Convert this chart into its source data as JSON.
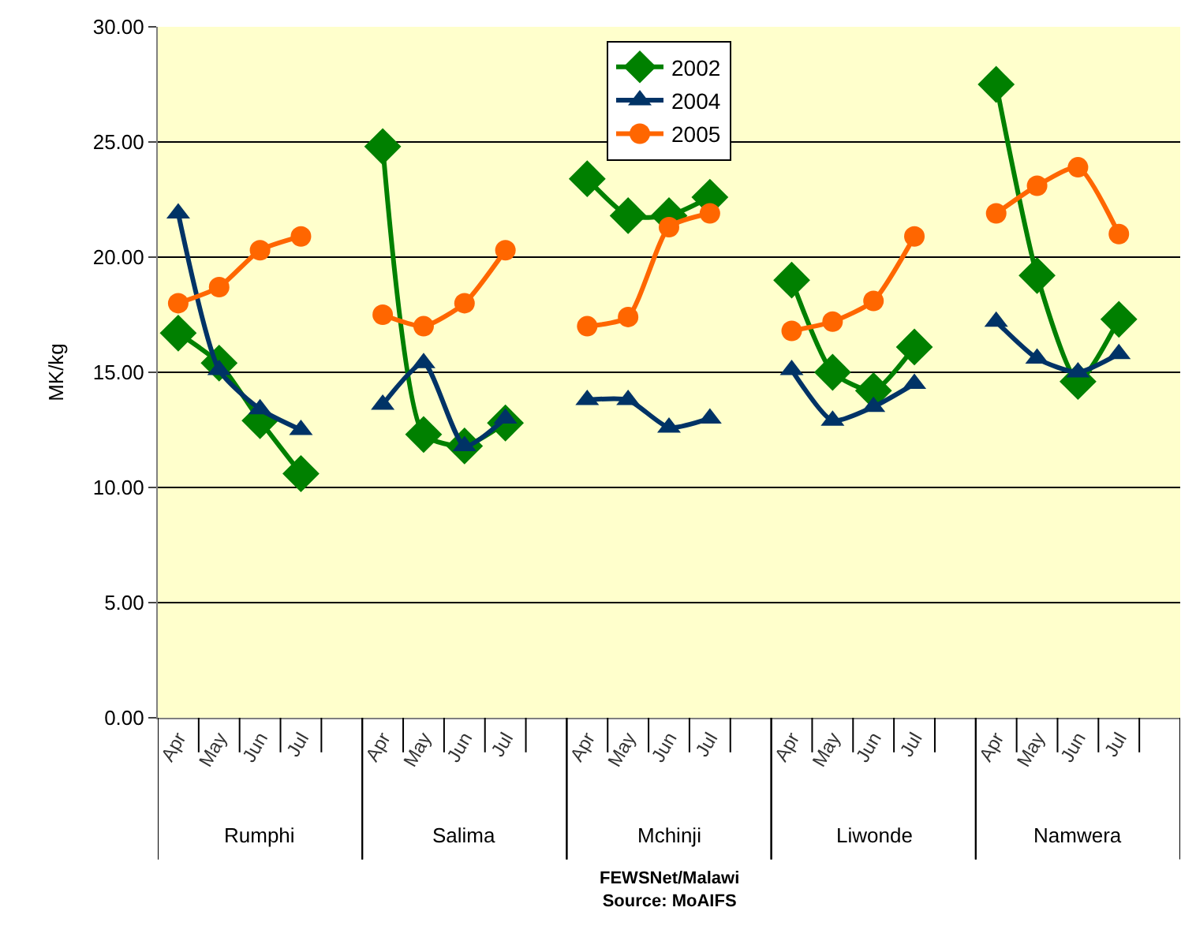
{
  "chart_data": {
    "type": "line",
    "ylabel": "MK/kg",
    "categories": [
      "Apr",
      "May",
      "Jun",
      "Jul",
      null,
      "Apr",
      "May",
      "Jun",
      "Jul",
      null,
      "Apr",
      "May",
      "Jun",
      "Jul",
      null,
      "Apr",
      "May",
      "Jun",
      "Jul",
      null,
      "Apr",
      "May",
      "Jun",
      "Jul",
      null
    ],
    "series": [
      {
        "name": "2002",
        "color": "#008000",
        "marker": "diamond",
        "values": [
          16.7,
          15.4,
          12.9,
          10.6,
          null,
          24.8,
          12.3,
          11.8,
          12.8,
          null,
          23.4,
          21.8,
          21.8,
          22.6,
          null,
          19.0,
          15.0,
          14.2,
          16.1,
          null,
          27.5,
          19.2,
          14.6,
          17.3,
          null
        ]
      },
      {
        "name": "2004",
        "color": "#003366",
        "marker": "triangle",
        "values": [
          21.9,
          15.1,
          13.4,
          12.5,
          null,
          13.6,
          15.4,
          11.8,
          13.0,
          null,
          13.8,
          13.8,
          12.6,
          13.0,
          null,
          15.1,
          12.9,
          13.5,
          14.5,
          null,
          17.2,
          15.6,
          15.0,
          15.8,
          null
        ]
      },
      {
        "name": "2005",
        "color": "#ff6600",
        "marker": "circle",
        "values": [
          18.0,
          18.7,
          20.3,
          20.9,
          null,
          17.5,
          17.0,
          18.0,
          20.3,
          null,
          17.0,
          17.4,
          21.3,
          21.9,
          null,
          16.8,
          17.2,
          18.1,
          20.9,
          null,
          21.9,
          23.1,
          23.9,
          21.0,
          null
        ]
      }
    ],
    "ylim": [
      0,
      30
    ],
    "yticks": [
      {
        "value": 0,
        "label": "0.00"
      },
      {
        "value": 5,
        "label": "5.00"
      },
      {
        "value": 10,
        "label": "10.00"
      },
      {
        "value": 15,
        "label": "15.00"
      },
      {
        "value": 20,
        "label": "20.00"
      },
      {
        "value": 25,
        "label": "25.00"
      },
      {
        "value": 30,
        "label": "30.00"
      }
    ],
    "grid": "y",
    "legend": "top",
    "line_style": "solid",
    "annotations": [
      "Rumphi",
      "Salima",
      "Mchinji",
      "Liwonde",
      "Namwera",
      "FEWSNet/Malawi\nSource: MoAIFS"
    ]
  }
}
